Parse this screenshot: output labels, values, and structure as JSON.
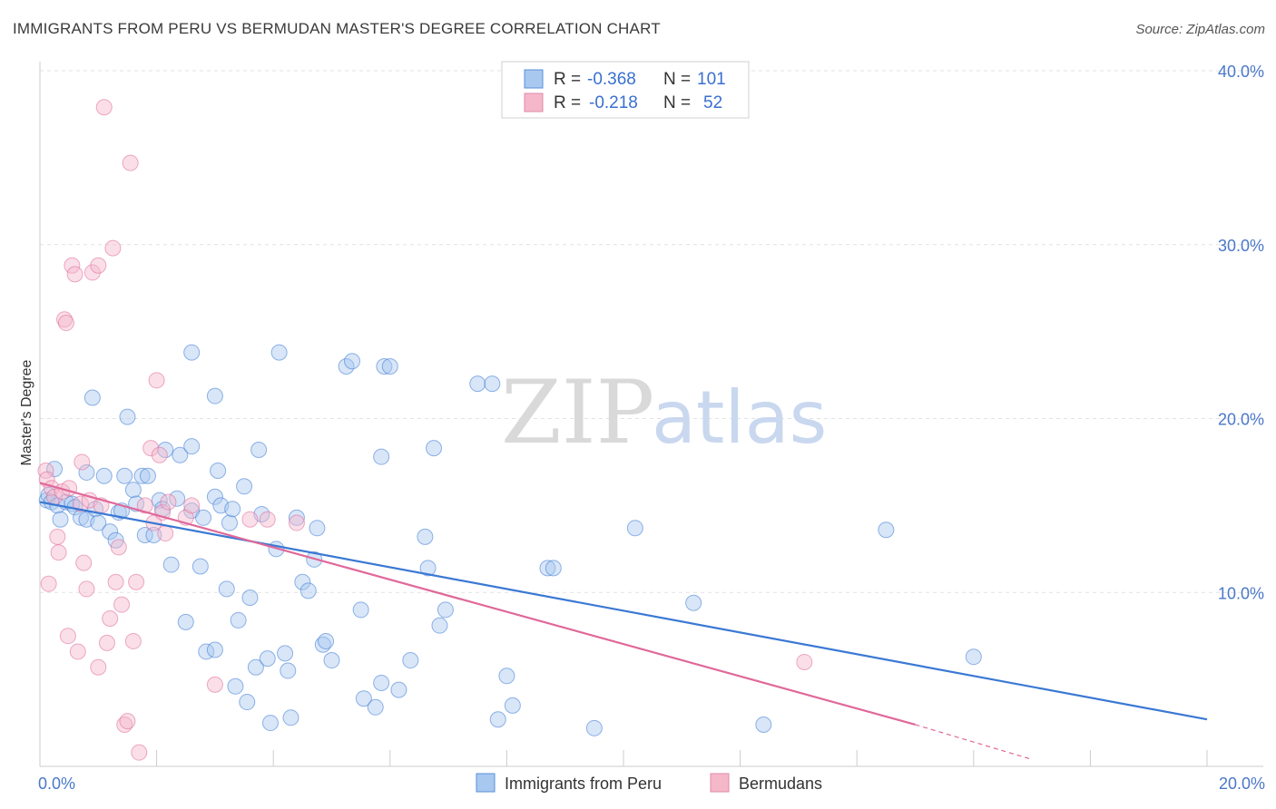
{
  "header": {
    "title": "IMMIGRANTS FROM PERU VS BERMUDAN MASTER'S DEGREE CORRELATION CHART",
    "source": "Source: ZipAtlas.com"
  },
  "watermark": {
    "zip": "ZIP",
    "atlas": "atlas"
  },
  "legend": {
    "rows": [
      {
        "r_label": "R =",
        "r_value": "-0.368",
        "n_label": "N =",
        "n_value": "101",
        "color": "#a8c8f0"
      },
      {
        "r_label": "R =",
        "r_value": "-0.218",
        "n_label": "N =",
        "n_value": "52",
        "color": "#f5b8cb"
      }
    ]
  },
  "bottom_legend": [
    {
      "label": "Immigrants from Peru",
      "color": "#a8c8f0"
    },
    {
      "label": "Bermudans",
      "color": "#f5b8cb"
    }
  ],
  "chart_data": {
    "type": "scatter",
    "title": "IMMIGRANTS FROM PERU VS BERMUDAN MASTER'S DEGREE CORRELATION CHART",
    "xlabel": "",
    "ylabel": "Master's Degree",
    "xlim": [
      0,
      20
    ],
    "ylim": [
      0,
      40
    ],
    "x_tick_labels": [
      "0.0%",
      "20.0%"
    ],
    "y_ticks": [
      10,
      20,
      30,
      40
    ],
    "y_tick_labels": [
      "10.0%",
      "20.0%",
      "30.0%",
      "40.0%"
    ],
    "grid": true,
    "legend_position": "top-center",
    "series": [
      {
        "name": "Immigrants from Peru",
        "color": "#3a78d4",
        "fill": "#a8c8f0",
        "trend": {
          "x": [
            0,
            20
          ],
          "y": [
            15.2,
            2.7
          ]
        },
        "points": [
          [
            0.12,
            15.3
          ],
          [
            0.15,
            15.6
          ],
          [
            0.2,
            15.2
          ],
          [
            0.25,
            17.1
          ],
          [
            0.3,
            15.0
          ],
          [
            0.35,
            14.2
          ],
          [
            0.45,
            15.2
          ],
          [
            0.55,
            15.1
          ],
          [
            0.6,
            14.9
          ],
          [
            0.7,
            14.3
          ],
          [
            0.8,
            14.2
          ],
          [
            0.8,
            16.9
          ],
          [
            0.9,
            21.2
          ],
          [
            0.95,
            14.8
          ],
          [
            1.0,
            14.0
          ],
          [
            1.1,
            16.7
          ],
          [
            1.2,
            13.5
          ],
          [
            1.3,
            13.0
          ],
          [
            1.35,
            14.6
          ],
          [
            1.4,
            14.7
          ],
          [
            1.45,
            16.7
          ],
          [
            1.5,
            20.1
          ],
          [
            1.6,
            15.9
          ],
          [
            1.65,
            15.1
          ],
          [
            1.75,
            16.7
          ],
          [
            1.8,
            13.3
          ],
          [
            1.85,
            16.7
          ],
          [
            1.95,
            13.3
          ],
          [
            2.05,
            15.3
          ],
          [
            2.1,
            14.8
          ],
          [
            2.15,
            18.2
          ],
          [
            2.25,
            11.6
          ],
          [
            2.35,
            15.4
          ],
          [
            2.4,
            17.9
          ],
          [
            2.5,
            8.3
          ],
          [
            2.6,
            23.8
          ],
          [
            2.6,
            18.4
          ],
          [
            2.6,
            14.7
          ],
          [
            2.75,
            11.5
          ],
          [
            2.8,
            14.3
          ],
          [
            2.85,
            6.6
          ],
          [
            3.0,
            21.3
          ],
          [
            3.0,
            15.5
          ],
          [
            3.0,
            6.7
          ],
          [
            3.05,
            17.0
          ],
          [
            3.1,
            15.0
          ],
          [
            3.2,
            10.2
          ],
          [
            3.25,
            14.0
          ],
          [
            3.3,
            14.8
          ],
          [
            3.35,
            4.6
          ],
          [
            3.4,
            8.4
          ],
          [
            3.5,
            16.1
          ],
          [
            3.55,
            3.7
          ],
          [
            3.6,
            9.7
          ],
          [
            3.7,
            5.7
          ],
          [
            3.75,
            18.2
          ],
          [
            3.8,
            14.5
          ],
          [
            3.9,
            6.2
          ],
          [
            3.95,
            2.5
          ],
          [
            4.05,
            12.5
          ],
          [
            4.1,
            23.8
          ],
          [
            4.2,
            6.5
          ],
          [
            4.25,
            5.5
          ],
          [
            4.3,
            2.8
          ],
          [
            4.4,
            14.3
          ],
          [
            4.5,
            10.6
          ],
          [
            4.6,
            10.1
          ],
          [
            4.7,
            11.9
          ],
          [
            4.75,
            13.7
          ],
          [
            4.85,
            7.0
          ],
          [
            4.9,
            7.2
          ],
          [
            5.0,
            6.1
          ],
          [
            5.25,
            23.0
          ],
          [
            5.35,
            23.3
          ],
          [
            5.5,
            9.0
          ],
          [
            5.55,
            3.9
          ],
          [
            5.75,
            3.4
          ],
          [
            5.85,
            17.8
          ],
          [
            5.85,
            4.8
          ],
          [
            5.9,
            23.0
          ],
          [
            6.0,
            23.0
          ],
          [
            6.15,
            4.4
          ],
          [
            6.35,
            6.1
          ],
          [
            6.6,
            13.2
          ],
          [
            6.65,
            11.4
          ],
          [
            6.75,
            18.3
          ],
          [
            6.85,
            8.1
          ],
          [
            6.95,
            9.0
          ],
          [
            7.5,
            22.0
          ],
          [
            7.75,
            22.0
          ],
          [
            7.85,
            2.7
          ],
          [
            8.0,
            5.2
          ],
          [
            8.1,
            3.5
          ],
          [
            8.7,
            11.4
          ],
          [
            8.8,
            11.4
          ],
          [
            9.5,
            2.2
          ],
          [
            10.2,
            13.7
          ],
          [
            11.2,
            9.4
          ],
          [
            12.4,
            2.4
          ],
          [
            14.5,
            13.6
          ],
          [
            16.0,
            6.3
          ]
        ]
      },
      {
        "name": "Bermudans",
        "color": "#e06899",
        "fill": "#f5b8cb",
        "trend": {
          "x": [
            0,
            15.0
          ],
          "y": [
            16.3,
            2.4
          ]
        },
        "trend_dashed": {
          "x": [
            15.0,
            17.0
          ],
          "y": [
            2.4,
            0.4
          ]
        },
        "points": [
          [
            0.1,
            17.0
          ],
          [
            0.12,
            16.5
          ],
          [
            0.15,
            10.5
          ],
          [
            0.2,
            16.0
          ],
          [
            0.25,
            15.5
          ],
          [
            0.3,
            13.2
          ],
          [
            0.32,
            12.3
          ],
          [
            0.38,
            15.8
          ],
          [
            0.42,
            25.7
          ],
          [
            0.45,
            25.5
          ],
          [
            0.48,
            7.5
          ],
          [
            0.5,
            16.0
          ],
          [
            0.55,
            28.8
          ],
          [
            0.6,
            28.3
          ],
          [
            0.65,
            6.6
          ],
          [
            0.7,
            15.1
          ],
          [
            0.72,
            17.5
          ],
          [
            0.75,
            11.7
          ],
          [
            0.8,
            10.2
          ],
          [
            0.85,
            15.3
          ],
          [
            0.9,
            28.4
          ],
          [
            1.0,
            28.8
          ],
          [
            1.0,
            5.7
          ],
          [
            1.05,
            15.0
          ],
          [
            1.1,
            37.9
          ],
          [
            1.15,
            7.1
          ],
          [
            1.2,
            8.5
          ],
          [
            1.25,
            29.8
          ],
          [
            1.3,
            10.6
          ],
          [
            1.35,
            12.6
          ],
          [
            1.4,
            9.3
          ],
          [
            1.45,
            2.4
          ],
          [
            1.5,
            2.6
          ],
          [
            1.55,
            34.7
          ],
          [
            1.6,
            7.2
          ],
          [
            1.65,
            10.6
          ],
          [
            1.7,
            0.8
          ],
          [
            1.8,
            15.0
          ],
          [
            1.9,
            18.3
          ],
          [
            1.95,
            14.0
          ],
          [
            2.0,
            22.2
          ],
          [
            2.05,
            17.9
          ],
          [
            2.1,
            14.6
          ],
          [
            2.15,
            13.4
          ],
          [
            2.2,
            15.2
          ],
          [
            2.5,
            14.3
          ],
          [
            2.6,
            15.0
          ],
          [
            3.0,
            4.7
          ],
          [
            3.6,
            14.2
          ],
          [
            3.9,
            14.2
          ],
          [
            4.4,
            14.0
          ],
          [
            13.1,
            6.0
          ]
        ]
      }
    ]
  }
}
